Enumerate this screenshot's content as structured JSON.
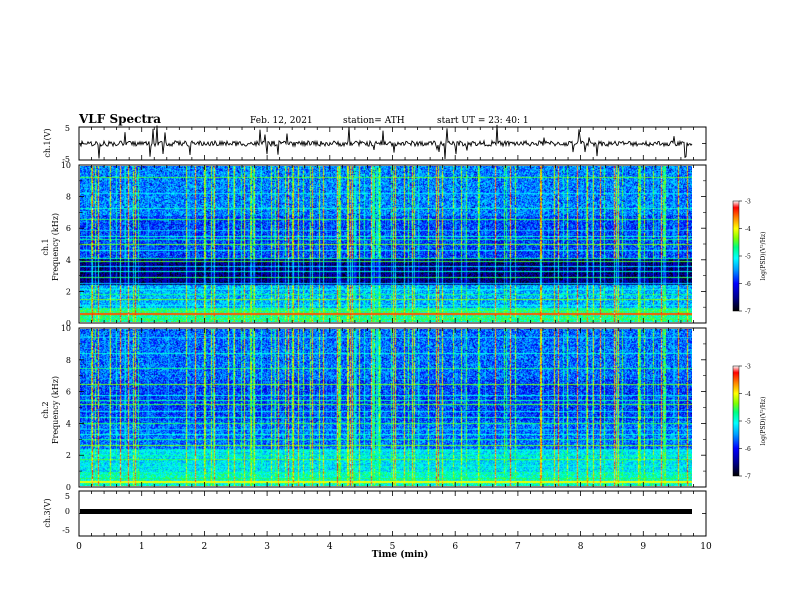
{
  "header": {
    "title": "VLF Spectra",
    "date": "Feb. 12, 2021",
    "station": "station= ATH",
    "start": "start  UT  =   23: 40: 1"
  },
  "chart_data": [
    {
      "type": "line",
      "panel": "ch1_waveform",
      "ylabel": "ch.1(V)",
      "ylim": [
        -5,
        5
      ],
      "yticks": [
        "5",
        "-5"
      ],
      "xlim": [
        0,
        10
      ],
      "baseline": 0,
      "series": [
        {
          "values": []
        }
      ]
    },
    {
      "type": "heatmap",
      "panel": "ch1_spectrogram",
      "ylabel": "ch.1\nFrequency  (kHz)",
      "ylim": [
        0,
        10
      ],
      "yticks": [
        "0",
        "2",
        "4",
        "6",
        "8",
        "10"
      ],
      "xlim": [
        0,
        9.83
      ],
      "colorbar": {
        "label": "log(PSD)(V²/Hz)",
        "range": [
          -7,
          -3
        ],
        "ticks": [
          "-3",
          "-4",
          "-5",
          "-6",
          "-7"
        ]
      },
      "bands_khz": [
        0.1,
        0.2,
        0.35,
        0.5,
        0.7,
        0.9,
        1.1,
        1.5,
        1.8,
        2.1,
        2.5,
        2.9,
        3.3,
        3.6,
        3.9,
        4.1,
        4.6,
        5.0,
        5.3,
        5.5,
        5.9,
        6.6,
        7.3,
        8.3,
        9.3
      ]
    },
    {
      "type": "heatmap",
      "panel": "ch2_spectrogram",
      "ylabel": "ch.2\nFrequency  (kHz)",
      "ylim": [
        0,
        10
      ],
      "yticks": [
        "0",
        "2",
        "4",
        "6",
        "8",
        "10"
      ],
      "xlim": [
        0,
        9.83
      ],
      "colorbar": {
        "label": "log(PSD)(V²/Hz)",
        "range": [
          -7,
          -3
        ],
        "ticks": [
          "-3",
          "-4",
          "-5",
          "-6",
          "-7"
        ]
      },
      "bands_khz": [
        0.2,
        0.5,
        0.9,
        1.3,
        1.7,
        2.0,
        2.3,
        2.6,
        3.0,
        3.3,
        3.6,
        4.0,
        4.4,
        4.8,
        5.2,
        5.5,
        5.8,
        6.5,
        7.5,
        8.5,
        9.5
      ]
    },
    {
      "type": "line",
      "panel": "ch3_waveform",
      "ylabel": "ch.3(V)",
      "ylim": [
        -5,
        5
      ],
      "yticks": [
        "5",
        "0",
        "-5"
      ],
      "xlim": [
        0,
        10
      ],
      "baseline": -0.5,
      "series": [
        {
          "values": []
        }
      ]
    }
  ],
  "x_axis": {
    "label": "Time  (min)",
    "range": [
      0,
      10
    ],
    "ticks": [
      "0",
      "1",
      "2",
      "3",
      "4",
      "5",
      "6",
      "7",
      "8",
      "9",
      "10"
    ]
  },
  "colors": {
    "background": "#ffffff",
    "axis": "#000000",
    "colormap": [
      "#000000",
      "#00008b",
      "#0000ff",
      "#00a0ff",
      "#00ffff",
      "#00ff80",
      "#80ff00",
      "#ffff00",
      "#ff8000",
      "#ff0000",
      "#ffffff"
    ]
  }
}
